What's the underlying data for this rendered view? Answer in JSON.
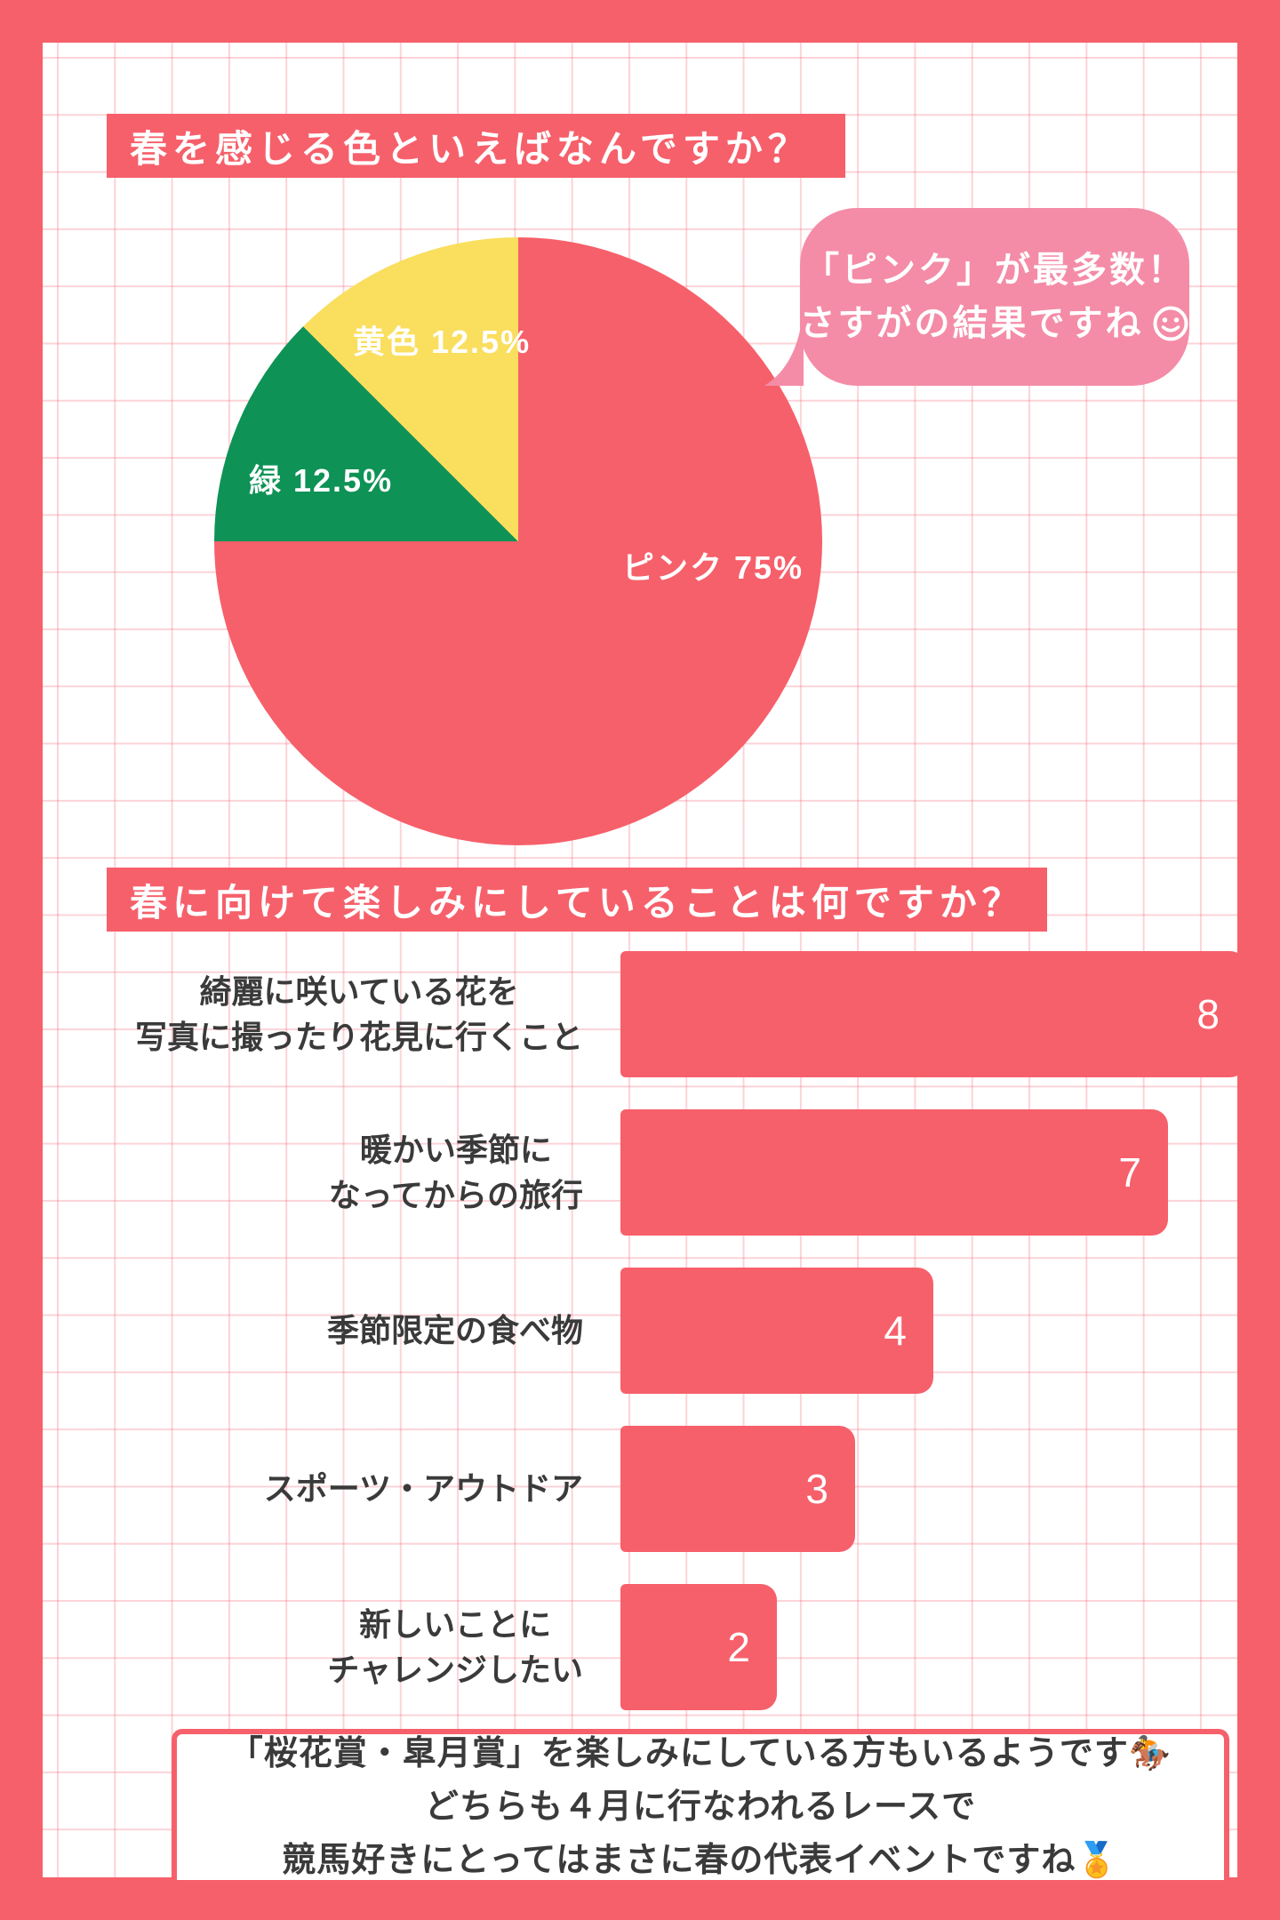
{
  "colors": {
    "coral": "#F6606B",
    "bubble_pink": "#F48CA7",
    "green": "#0E9256",
    "yellow": "#FADE5E",
    "text_dark": "#3a3a3a",
    "grid_pink": "#F7C9D1",
    "white": "#FFFFFF"
  },
  "section1": {
    "title": "春を感じる色といえばなんですか？",
    "pie_labels": {
      "pink": "ピンク 75%",
      "green": "緑 12.5%",
      "yellow": "黄色 12.5%"
    },
    "bubble": {
      "line1": "「ピンク」が最多数！",
      "line2": "さすがの結果ですね",
      "smiley_icon": "smiley-face"
    }
  },
  "section2": {
    "title": "春に向けて楽しみにしていることは何ですか？",
    "bars": [
      {
        "lines": [
          "綺麗に咲いている花を",
          "写真に撮ったり花見に行くこと"
        ]
      },
      {
        "lines": [
          "暖かい季節に",
          "なってからの旅行"
        ]
      },
      {
        "lines": [
          "季節限定の食べ物"
        ]
      },
      {
        "lines": [
          "スポーツ・アウトドア"
        ]
      },
      {
        "lines": [
          "新しいことに",
          "チャレンジしたい"
        ]
      }
    ]
  },
  "footer_note": {
    "lines": [
      "「桜花賞・皐月賞」を楽しみにしている方もいるようです🏇",
      "どちらも４月に行なわれるレースで",
      "競馬好きにとってはまさに春の代表イベントですね🏅"
    ]
  },
  "chart_data": [
    {
      "type": "pie",
      "title": "春を感じる色といえばなんですか？",
      "categories": [
        "ピンク",
        "緑",
        "黄色"
      ],
      "values": [
        75,
        12.5,
        12.5
      ],
      "unit": "%",
      "colors": [
        "#F6606B",
        "#0E9256",
        "#FADE5E"
      ],
      "annotation": "「ピンク」が最多数！さすがの結果ですね",
      "start_angle": "12 o'clock, pink clockwise 270deg, then green 45deg, yellow 45deg",
      "labels_inside": true,
      "legend": "none"
    },
    {
      "type": "bar",
      "title": "春に向けて楽しみにしていることは何ですか？",
      "orientation": "horizontal",
      "categories": [
        "綺麗に咲いている花を写真に撮ったり花見に行くこと",
        "暖かい季節になってからの旅行",
        "季節限定の食べ物",
        "スポーツ・アウトドア",
        "新しいことにチャレンジしたい"
      ],
      "values": [
        8,
        7,
        4,
        3,
        2
      ],
      "xlim": [
        0,
        8
      ],
      "bar_color": "#F6606B",
      "value_labels": "inside right, white",
      "grid": "pink squared paper background",
      "legend": "none"
    }
  ]
}
